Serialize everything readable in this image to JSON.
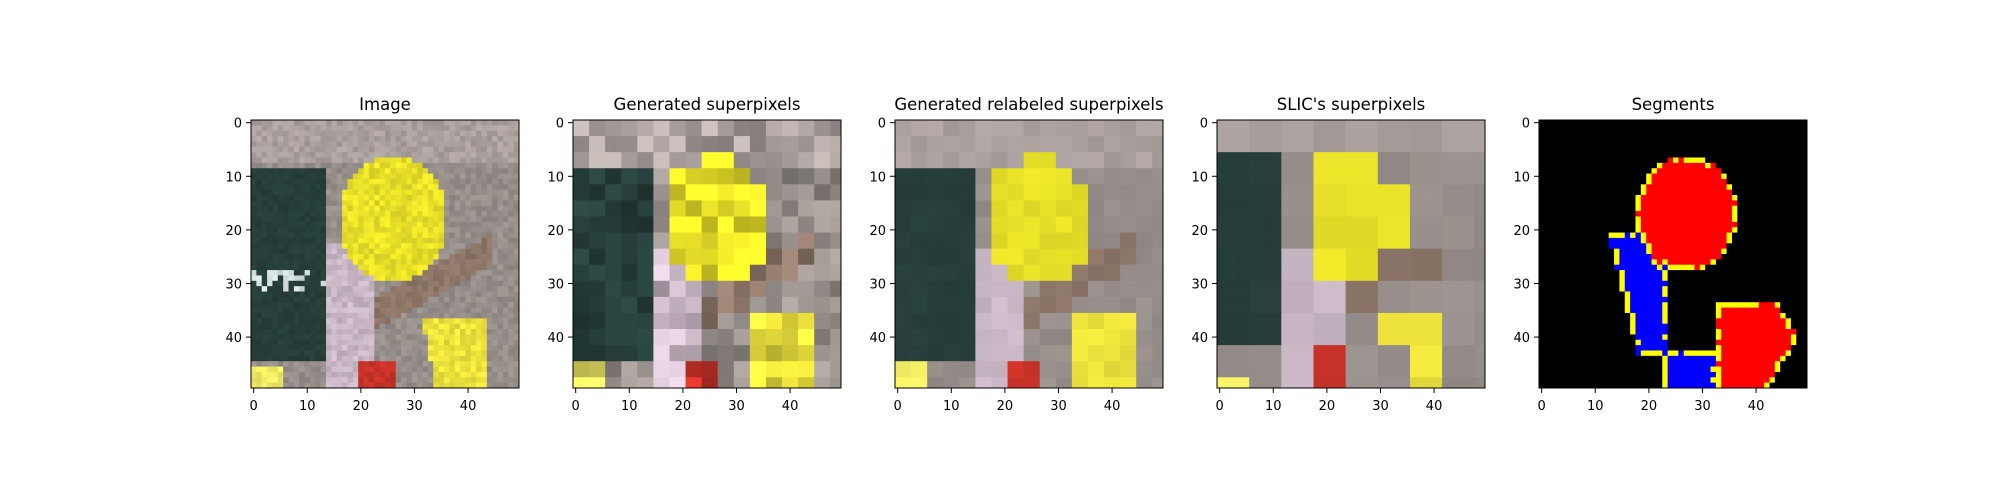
{
  "chart_data": {
    "type": "image_grid",
    "tick_values": [
      0,
      10,
      20,
      30,
      40
    ],
    "tick_labels": [
      "0",
      "10",
      "20",
      "30",
      "40"
    ],
    "image_size": [
      50,
      50
    ],
    "grid": false,
    "panels": [
      {
        "title": "Image",
        "style": "photo"
      },
      {
        "title": "Generated superpixels",
        "style": "noisy-superpixels"
      },
      {
        "title": "Generated relabeled superpixels",
        "style": "relabeled-superpixels"
      },
      {
        "title": "SLIC's superpixels",
        "style": "slic-superpixels"
      },
      {
        "title": "Segments",
        "style": "segment-mask"
      }
    ],
    "segment_colors": {
      "background": "#000000",
      "segment_a": "#ff0000",
      "segment_b": "#0000ff",
      "boundary": "#ffff00"
    }
  }
}
